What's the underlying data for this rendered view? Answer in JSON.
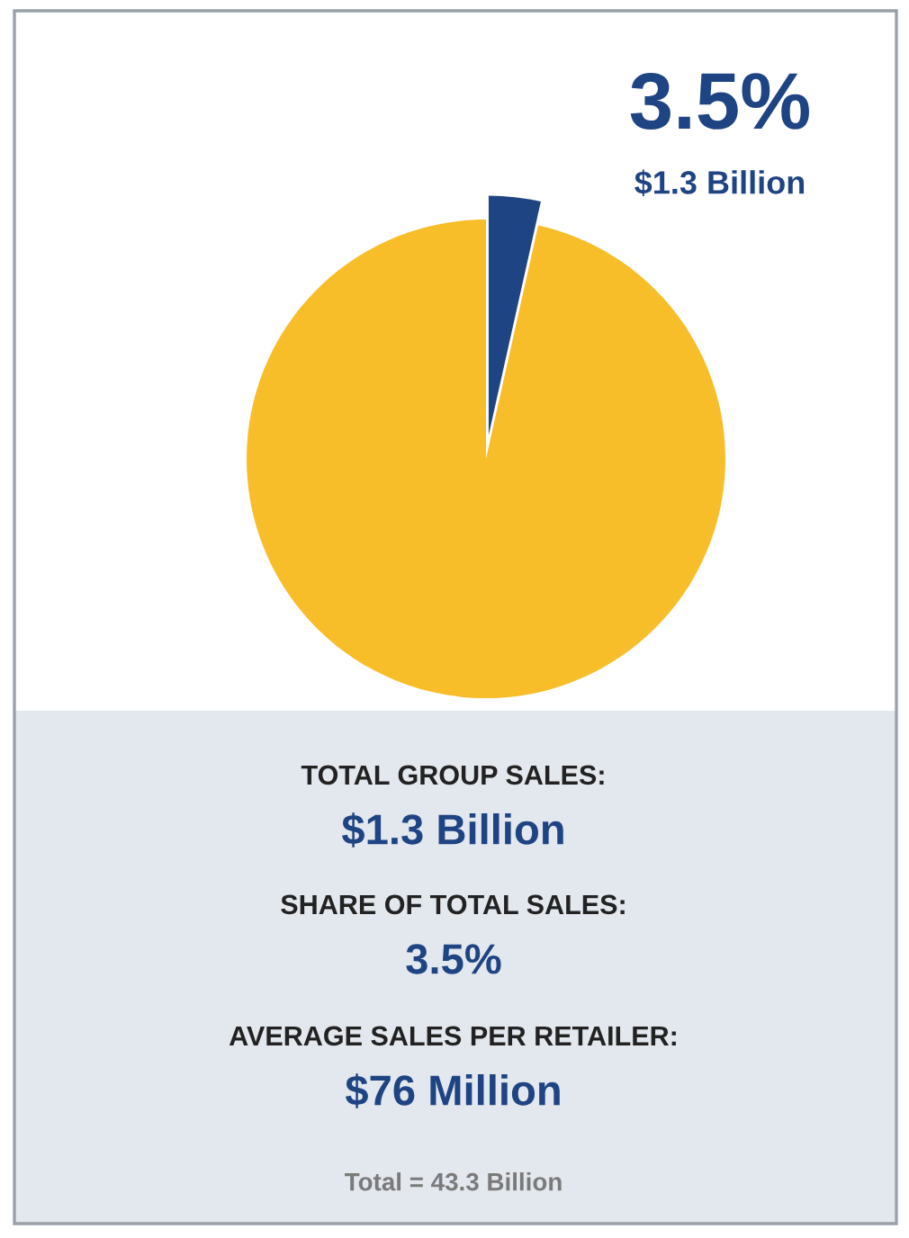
{
  "chart_data": {
    "type": "pie",
    "categories": [
      null,
      null
    ],
    "values": [
      3.5,
      96.5
    ],
    "colors": [
      "#1f4483",
      "#f8be2a"
    ],
    "value_labels": [
      "3.5%",
      null
    ],
    "annotations": [
      "$1.3 Billion",
      "TOTAL GROUP SALES:",
      "$1.3 Billion",
      "SHARE OF TOTAL SALES:",
      "3.5%",
      "AVERAGE SALES PER RETAILER:",
      "$76 Million",
      "Total = 43.3 Billion"
    ],
    "legend": false
  }
}
